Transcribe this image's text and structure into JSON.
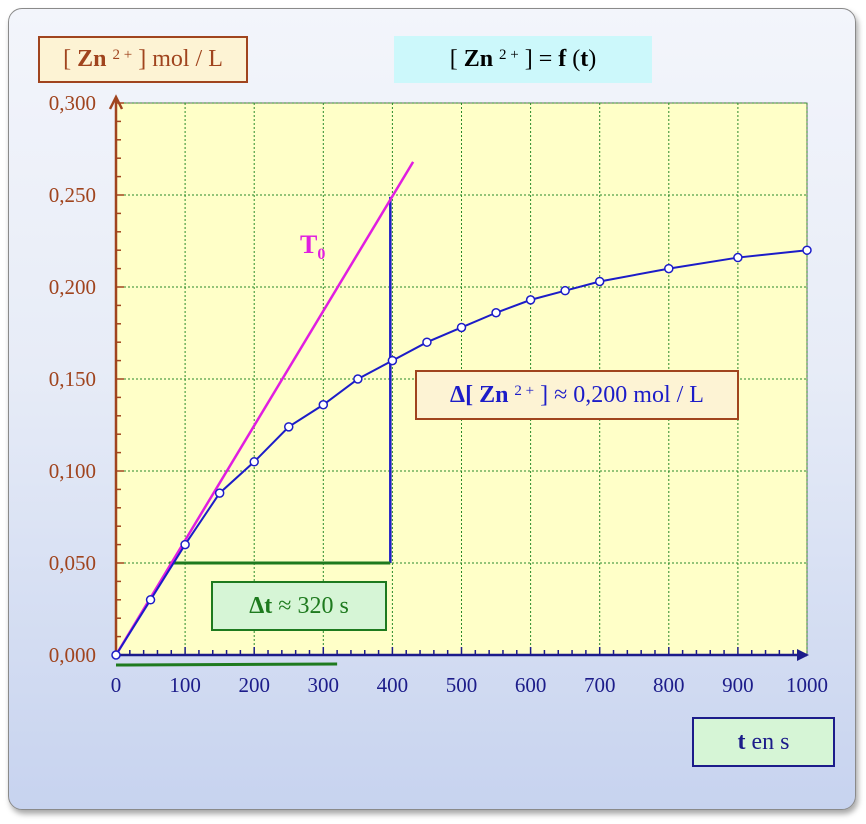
{
  "labels": {
    "ylabel_prefix": "[",
    "ylabel_species": "Zn",
    "ylabel_charge": "2 +",
    "ylabel_suffix": "] mol / L",
    "title_prefix": "[",
    "title_species": "Zn",
    "title_charge": "2 +",
    "title_mid": "] =",
    "title_f": "f",
    "title_paren_open": "(",
    "title_t": "t",
    "title_paren_close": ")",
    "delta_c_prefix": "Δ[",
    "delta_c_species": "Zn",
    "delta_c_charge": "2 +",
    "delta_c_suffix": "] ≈ 0,200 mol / L",
    "delta_t_bold": "Δt",
    "delta_t_rest": "≈ 320 s",
    "xlabel_bold": "t",
    "xlabel_rest": "en s",
    "tangent_label": "T",
    "tangent_sub": "0"
  },
  "chart_data": {
    "type": "line",
    "title": "[ Zn 2+ ] = f (t)",
    "xlabel": "t en s",
    "ylabel": "[ Zn 2+ ] mol / L",
    "xlim": [
      0,
      1000
    ],
    "ylim": [
      0,
      0.3
    ],
    "x_ticks": [
      "0",
      "100",
      "200",
      "300",
      "400",
      "500",
      "600",
      "700",
      "800",
      "900",
      "1000"
    ],
    "y_ticks": [
      "0,000",
      "0,050",
      "0,100",
      "0,150",
      "0,200",
      "0,250",
      "0,300"
    ],
    "grid": true,
    "series": [
      {
        "x": [
          0,
          50,
          100,
          150,
          200,
          250,
          300,
          350,
          400,
          450,
          500,
          550,
          600,
          650,
          700,
          800,
          900,
          1000
        ],
        "y": [
          0.0,
          0.03,
          0.06,
          0.088,
          0.105,
          0.124,
          0.136,
          0.15,
          0.16,
          0.17,
          0.178,
          0.186,
          0.193,
          0.198,
          0.203,
          0.21,
          0.216,
          0.22
        ],
        "color": "#1c1cc8"
      }
    ],
    "tangent": {
      "label": "T0",
      "from": [
        0,
        0.0
      ],
      "to": [
        430,
        0.268
      ],
      "color": "#e01ee0"
    },
    "delta_y_line": {
      "x": 397,
      "y_from": 0.05,
      "y_to": 0.249,
      "color": "#1c1cc8"
    },
    "delta_x_line": {
      "y": 0.05,
      "x_from": 77,
      "x_to": 397,
      "color": "#1e7a1e"
    },
    "delta_x_underline": {
      "x_from": 0,
      "x_to": 320,
      "color": "#1e7a1e"
    },
    "annotations": [
      "Δ[ Zn 2+ ] ≈ 0,200 mol / L",
      "Δt ≈ 320 s"
    ],
    "colors": {
      "plot_bg": "#ffffc8",
      "grid": "#2a8a2a",
      "y_axis": "#a0441e",
      "x_axis": "#1c1c8a"
    }
  }
}
